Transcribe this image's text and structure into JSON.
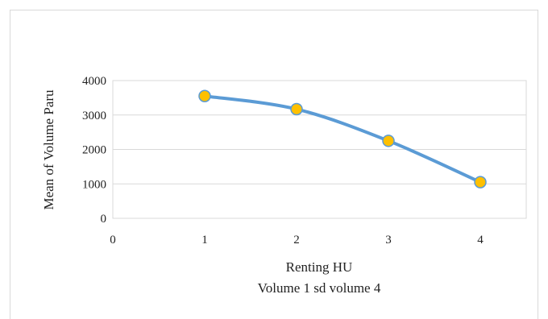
{
  "chart_data": {
    "type": "line",
    "x": [
      1,
      2,
      3,
      4
    ],
    "values": [
      3550,
      3170,
      2250,
      1050
    ],
    "xlabel": "Renting HU",
    "xlabel2": "Volume 1 sd volume 4",
    "ylabel": "Mean of Volume Paru",
    "xlim": [
      0,
      4.5
    ],
    "ylim": [
      0,
      4000
    ],
    "x_ticks": [
      "0",
      "1",
      "2",
      "3",
      "4"
    ],
    "y_ticks": [
      "0",
      "1000",
      "2000",
      "3000",
      "4000"
    ],
    "grid": true,
    "legend": "none",
    "line_color": "#5b9bd5",
    "marker_color": "#ffc000",
    "marker_edge_color": "#5b9bd5"
  }
}
